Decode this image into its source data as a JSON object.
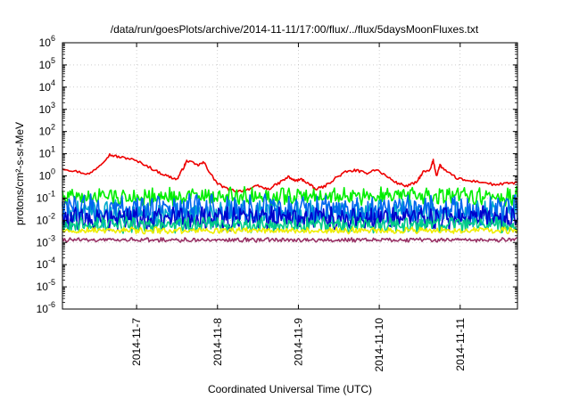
{
  "chart_data": {
    "type": "line",
    "title": "/data/run/goesPlots/archive/2014-11-11/17:00/flux/../flux/5daysMoonFluxes.txt",
    "xlabel": "Coordinated Universal Time (UTC)",
    "ylabel": "protons/cm²-s-sr-MeV",
    "yscale": "log",
    "ylim": [
      1e-06,
      1000000.0
    ],
    "xlim": [
      "2014-11-06 02:00",
      "2014-11-11 17:00"
    ],
    "grid": true,
    "y_ticks": [
      {
        "base": "10",
        "exp": "-6"
      },
      {
        "base": "10",
        "exp": "-5"
      },
      {
        "base": "10",
        "exp": "-4"
      },
      {
        "base": "10",
        "exp": "-3"
      },
      {
        "base": "10",
        "exp": "-2"
      },
      {
        "base": "10",
        "exp": "-1"
      },
      {
        "base": "10",
        "exp": "0"
      },
      {
        "base": "10",
        "exp": "1"
      },
      {
        "base": "10",
        "exp": "2"
      },
      {
        "base": "10",
        "exp": "3"
      },
      {
        "base": "10",
        "exp": "4"
      },
      {
        "base": "10",
        "exp": "5"
      },
      {
        "base": "10",
        "exp": "6"
      }
    ],
    "x_ticks": [
      {
        "label": "2014-11-7",
        "date": "2014-11-07"
      },
      {
        "label": "2014-11-8",
        "date": "2014-11-08"
      },
      {
        "label": "2014-11-9",
        "date": "2014-11-09"
      },
      {
        "label": "2014-11-10",
        "date": "2014-11-10"
      },
      {
        "label": "2014-11-11",
        "date": "2014-11-11"
      }
    ],
    "series": [
      {
        "color": "#ee0000",
        "points": [
          [
            "2014-11-06 02:00",
            2.2
          ],
          [
            "2014-11-06 06:00",
            1.6
          ],
          [
            "2014-11-06 10:00",
            1.2
          ],
          [
            "2014-11-06 13:00",
            3.0
          ],
          [
            "2014-11-06 16:00",
            9.0
          ],
          [
            "2014-11-06 19:00",
            7.0
          ],
          [
            "2014-11-06 22:00",
            6.0
          ],
          [
            "2014-11-07 02:00",
            3.5
          ],
          [
            "2014-11-07 06:00",
            1.6
          ],
          [
            "2014-11-07 09:00",
            1.0
          ],
          [
            "2014-11-07 12:00",
            0.7
          ],
          [
            "2014-11-07 14:00",
            2.5
          ],
          [
            "2014-11-07 15:00",
            5.0
          ],
          [
            "2014-11-07 18:00",
            3.0
          ],
          [
            "2014-11-07 20:00",
            4.0
          ],
          [
            "2014-11-07 22:00",
            1.2
          ],
          [
            "2014-11-08 00:00",
            0.45
          ],
          [
            "2014-11-08 03:00",
            0.25
          ],
          [
            "2014-11-08 06:00",
            0.2
          ],
          [
            "2014-11-08 09:00",
            0.25
          ],
          [
            "2014-11-08 12:00",
            0.35
          ],
          [
            "2014-11-08 15:00",
            0.25
          ],
          [
            "2014-11-08 18:00",
            0.45
          ],
          [
            "2014-11-08 21:00",
            0.9
          ],
          [
            "2014-11-08 23:00",
            0.6
          ],
          [
            "2014-11-09 01:00",
            0.7
          ],
          [
            "2014-11-09 03:00",
            0.45
          ],
          [
            "2014-11-09 05:00",
            0.25
          ],
          [
            "2014-11-09 08:00",
            0.35
          ],
          [
            "2014-11-09 11:00",
            0.8
          ],
          [
            "2014-11-09 14:00",
            1.5
          ],
          [
            "2014-11-09 17:00",
            1.8
          ],
          [
            "2014-11-09 20:00",
            1.3
          ],
          [
            "2014-11-09 23:00",
            2.0
          ],
          [
            "2014-11-10 02:00",
            1.0
          ],
          [
            "2014-11-10 05:00",
            0.5
          ],
          [
            "2014-11-10 08:00",
            0.35
          ],
          [
            "2014-11-10 11:00",
            0.5
          ],
          [
            "2014-11-10 13:00",
            1.5
          ],
          [
            "2014-11-10 15:00",
            1.7
          ],
          [
            "2014-11-10 16:00",
            5.0
          ],
          [
            "2014-11-10 17:00",
            1.0
          ],
          [
            "2014-11-10 18:00",
            3.0
          ],
          [
            "2014-11-10 20:00",
            1.5
          ],
          [
            "2014-11-10 23:00",
            0.8
          ],
          [
            "2014-11-11 02:00",
            0.6
          ],
          [
            "2014-11-11 06:00",
            0.55
          ],
          [
            "2014-11-11 10:00",
            0.4
          ],
          [
            "2014-11-11 14:00",
            0.45
          ],
          [
            "2014-11-11 17:00",
            0.5
          ]
        ]
      },
      {
        "color": "#00ee00",
        "level": 0.12,
        "jitter": 0.35
      },
      {
        "color": "#00aacc",
        "level": 0.02,
        "jitter": 0.5
      },
      {
        "color": "#0066ee",
        "level": 0.03,
        "jitter": 0.55
      },
      {
        "color": "#0000cc",
        "level": 0.012,
        "jitter": 0.45
      },
      {
        "color": "#00cc88",
        "level": 0.006,
        "jitter": 0.3
      },
      {
        "color": "#eeee00",
        "level": 0.0035,
        "jitter": 0.12
      },
      {
        "color": "#993366",
        "level": 0.0013,
        "jitter": 0.08
      }
    ]
  }
}
